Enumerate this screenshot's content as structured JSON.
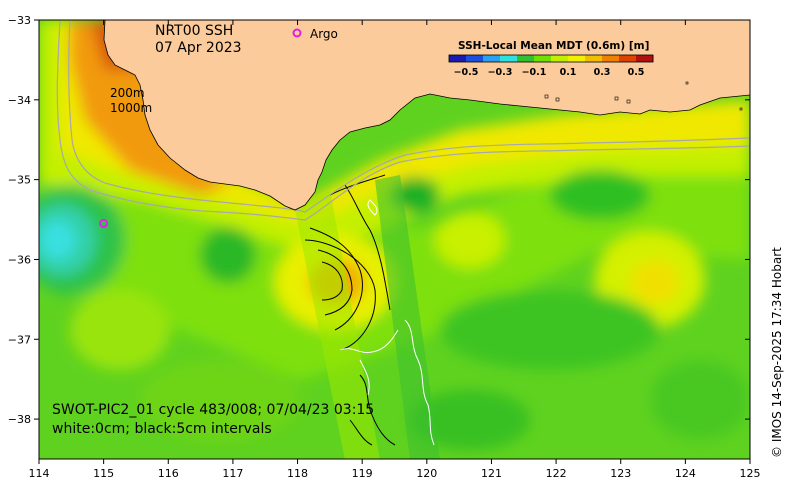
{
  "title": {
    "line1": "NRT00 SSH",
    "line2": "07 Apr 2023"
  },
  "legend": {
    "argo_label": "Argo",
    "argo_color": "#e020e0"
  },
  "colorbar": {
    "title": "SSH-Local Mean MDT (0.6m) [m]",
    "ticks": [
      "−0.5",
      "−0.3",
      "−0.1",
      "0.1",
      "0.3",
      "0.5"
    ],
    "colors": [
      "#1a1ab0",
      "#1a4fe0",
      "#2aa0f0",
      "#30e0e0",
      "#30c030",
      "#70e000",
      "#c0f000",
      "#f0f000",
      "#f0c000",
      "#f08000",
      "#e04000",
      "#b01010"
    ]
  },
  "isobaths": {
    "label_200": "200m",
    "label_1000": "1000m"
  },
  "swot": {
    "line1": "SWOT-PIC2_01 cycle 483/008; 07/04/23 03:15",
    "line2": "white:0cm; black:5cm intervals"
  },
  "credit": "© IMOS 14-Sep-2025 17:34 Hobart",
  "axes": {
    "x_ticks": [
      "114",
      "115",
      "116",
      "117",
      "118",
      "119",
      "120",
      "121",
      "122",
      "123",
      "124",
      "125"
    ],
    "y_ticks": [
      "−33",
      "−34",
      "−35",
      "−36",
      "−37",
      "−38"
    ],
    "xlim": [
      114,
      125
    ],
    "ylim": [
      -38.5,
      -33
    ]
  },
  "colors": {
    "land": "#fbcb9b",
    "ocean_base": "#58d020"
  },
  "argo_float": {
    "lon": 115.0,
    "lat": -35.55
  }
}
